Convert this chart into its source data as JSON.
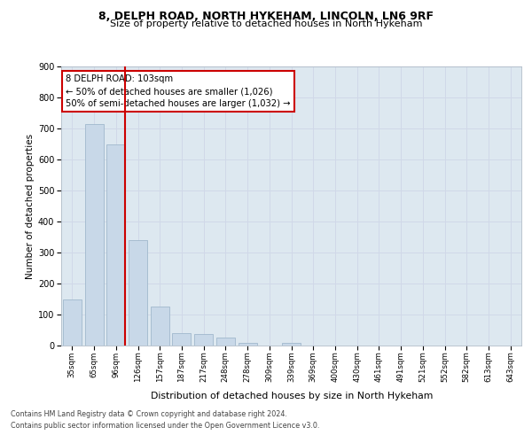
{
  "title1": "8, DELPH ROAD, NORTH HYKEHAM, LINCOLN, LN6 9RF",
  "title2": "Size of property relative to detached houses in North Hykeham",
  "xlabel": "Distribution of detached houses by size in North Hykeham",
  "ylabel": "Number of detached properties",
  "categories": [
    "35sqm",
    "65sqm",
    "96sqm",
    "126sqm",
    "157sqm",
    "187sqm",
    "217sqm",
    "248sqm",
    "278sqm",
    "309sqm",
    "339sqm",
    "369sqm",
    "400sqm",
    "430sqm",
    "461sqm",
    "491sqm",
    "521sqm",
    "552sqm",
    "582sqm",
    "613sqm",
    "643sqm"
  ],
  "values": [
    150,
    715,
    650,
    340,
    127,
    40,
    37,
    27,
    10,
    0,
    10,
    0,
    0,
    0,
    0,
    0,
    0,
    0,
    0,
    0,
    0
  ],
  "bar_color": "#c8d8e8",
  "bar_edge_color": "#a0b8cc",
  "red_line_index": 2,
  "annotation_line1": "8 DELPH ROAD: 103sqm",
  "annotation_line2": "← 50% of detached houses are smaller (1,026)",
  "annotation_line3": "50% of semi-detached houses are larger (1,032) →",
  "annotation_box_color": "#ffffff",
  "annotation_border_color": "#cc0000",
  "grid_color": "#d0d8e8",
  "background_color": "#dde8f0",
  "ylim": [
    0,
    900
  ],
  "yticks": [
    0,
    100,
    200,
    300,
    400,
    500,
    600,
    700,
    800,
    900
  ],
  "footer1": "Contains HM Land Registry data © Crown copyright and database right 2024.",
  "footer2": "Contains public sector information licensed under the Open Government Licence v3.0."
}
